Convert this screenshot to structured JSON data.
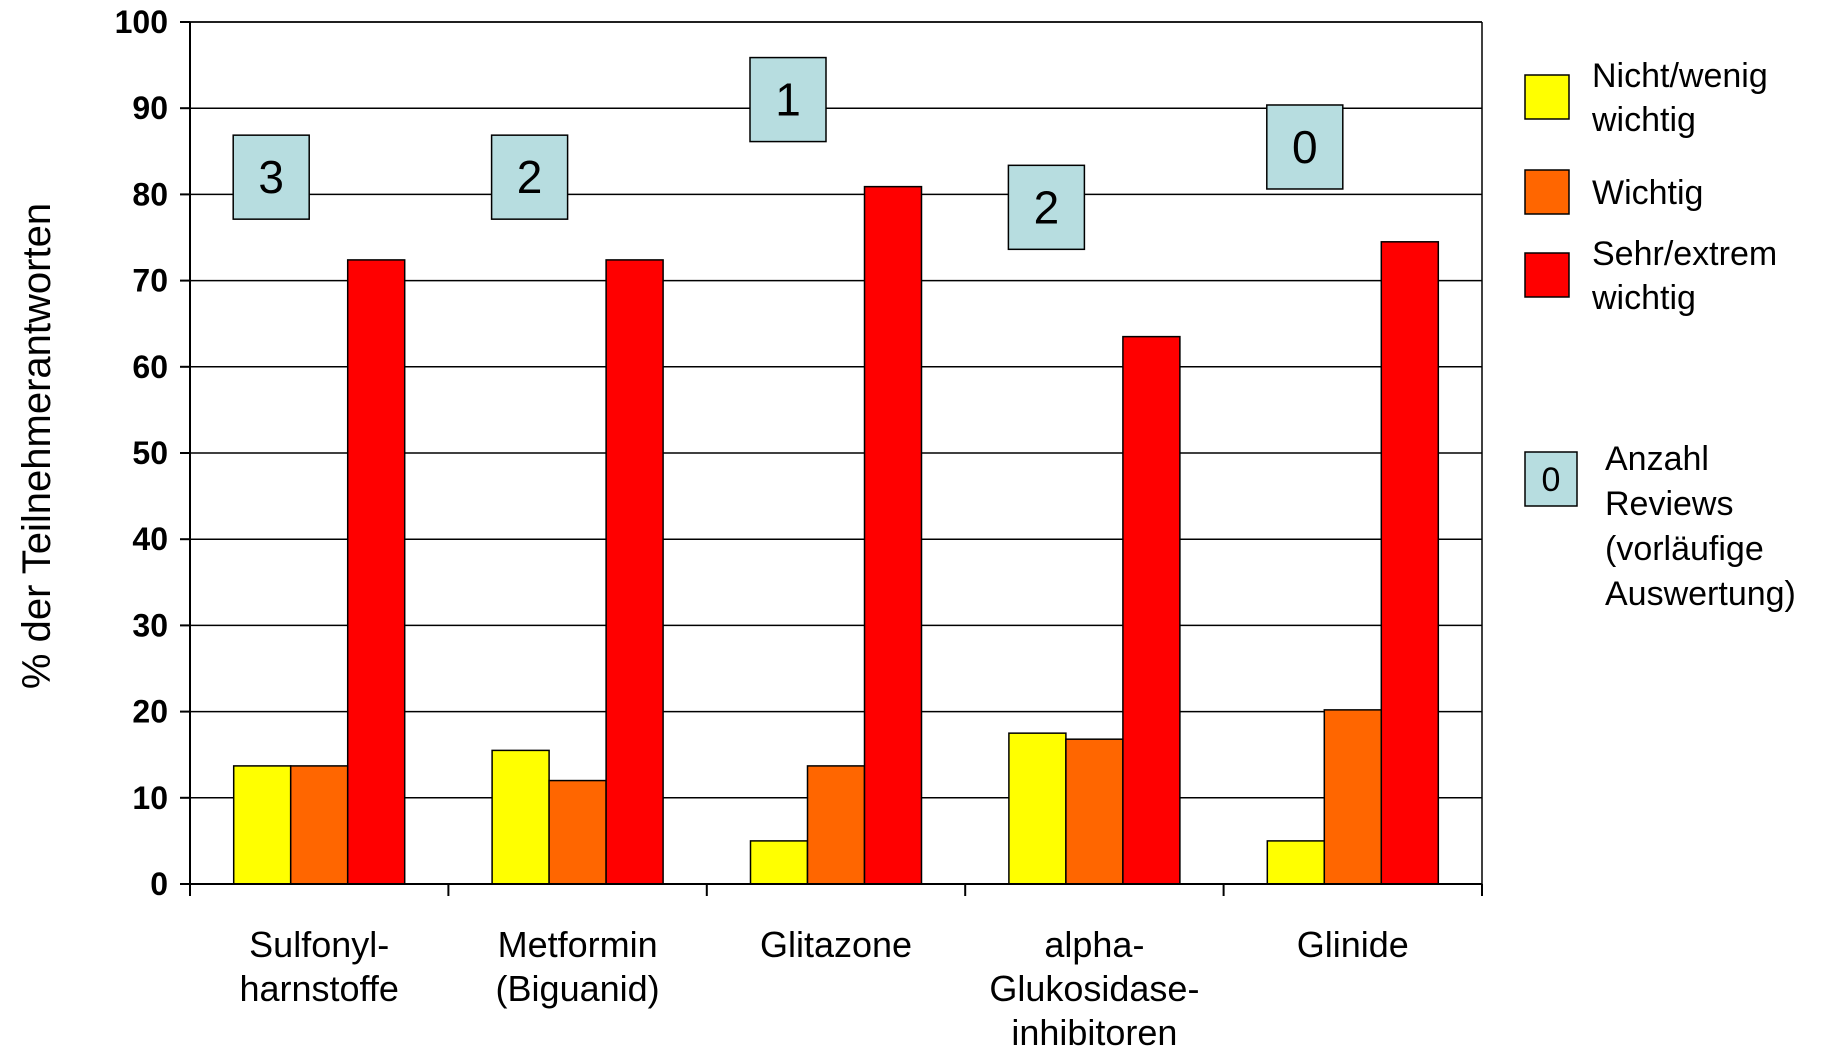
{
  "chart_data": {
    "type": "bar",
    "title": "",
    "xlabel": "",
    "ylabel": "% der Teilnehmerantworten",
    "ylim": [
      0,
      100
    ],
    "yticks": [
      0,
      10,
      20,
      30,
      40,
      50,
      60,
      70,
      80,
      90,
      100
    ],
    "grid": true,
    "legend_position": "right",
    "categories": [
      [
        "Sulfonyl-",
        "harnstoffe"
      ],
      [
        "Metformin",
        "(Biguanid)"
      ],
      [
        "Glitazone"
      ],
      [
        "alpha-",
        "Glukosidase-",
        "inhibitoren"
      ],
      [
        "Glinide"
      ]
    ],
    "series": [
      {
        "name": "Nicht/wenig wichtig",
        "legend_lines": [
          "Nicht/wenig",
          "wichtig"
        ],
        "color": "#ffff00",
        "values": [
          13.7,
          15.5,
          5.0,
          17.5,
          5.0
        ]
      },
      {
        "name": "Wichtig",
        "legend_lines": [
          "Wichtig"
        ],
        "color": "#ff6600",
        "values": [
          13.7,
          12.0,
          13.7,
          16.8,
          20.2
        ]
      },
      {
        "name": "Sehr/extrem wichtig",
        "legend_lines": [
          "Sehr/extrem",
          "wichtig"
        ],
        "color": "#ff0000",
        "values": [
          72.4,
          72.4,
          80.9,
          63.5,
          74.5
        ]
      }
    ],
    "reviews": {
      "legend_symbol": "0",
      "legend_lines": [
        "Anzahl",
        "Reviews",
        "(vorläufige",
        "Auswertung)"
      ],
      "color": "#b7dde0",
      "labels": [
        {
          "text": "3",
          "y": 82
        },
        {
          "text": "2",
          "y": 82
        },
        {
          "text": "1",
          "y": 91
        },
        {
          "text": "2",
          "y": 78.5
        },
        {
          "text": "0",
          "y": 85.5
        }
      ]
    }
  }
}
